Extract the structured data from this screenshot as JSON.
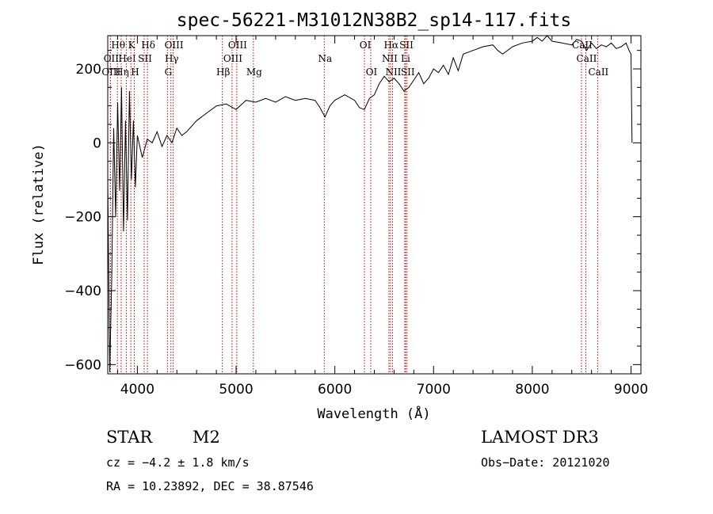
{
  "chart_data": {
    "type": "line",
    "title": "spec-56221-M31012N38B2_sp14-117.fits",
    "xlabel": "Wavelength (Å)",
    "ylabel": "Flux (relative)",
    "xlim": [
      3700,
      9100
    ],
    "ylim": [
      -625,
      290
    ],
    "xticks": [
      4000,
      5000,
      6000,
      7000,
      8000,
      9000
    ],
    "yticks": [
      -600,
      -400,
      -200,
      0,
      200
    ],
    "x_minor_step": 200,
    "y_minor_step": 50,
    "spectrum": {
      "name": "flux",
      "x": [
        3700,
        3720,
        3740,
        3760,
        3780,
        3800,
        3820,
        3840,
        3860,
        3880,
        3900,
        3920,
        3940,
        3960,
        3980,
        4000,
        4050,
        4100,
        4150,
        4200,
        4250,
        4300,
        4350,
        4400,
        4450,
        4500,
        4600,
        4700,
        4800,
        4900,
        5000,
        5100,
        5200,
        5300,
        5400,
        5500,
        5600,
        5700,
        5800,
        5850,
        5900,
        5950,
        6000,
        6100,
        6200,
        6250,
        6300,
        6350,
        6400,
        6450,
        6500,
        6550,
        6600,
        6650,
        6700,
        6750,
        6800,
        6850,
        6900,
        6950,
        7000,
        7050,
        7100,
        7150,
        7200,
        7250,
        7300,
        7400,
        7500,
        7600,
        7650,
        7700,
        7800,
        7900,
        8000,
        8050,
        8100,
        8150,
        8200,
        8300,
        8400,
        8450,
        8500,
        8550,
        8600,
        8650,
        8700,
        8750,
        8800,
        8850,
        8900,
        8950,
        8980,
        9000,
        9010
      ],
      "y": [
        -100,
        -620,
        -370,
        40,
        -200,
        110,
        -130,
        150,
        -240,
        60,
        -210,
        140,
        -100,
        60,
        -120,
        20,
        -40,
        10,
        0,
        30,
        -10,
        20,
        0,
        40,
        20,
        30,
        60,
        80,
        100,
        105,
        90,
        115,
        110,
        120,
        110,
        125,
        115,
        120,
        115,
        95,
        70,
        100,
        115,
        130,
        115,
        95,
        90,
        120,
        130,
        160,
        180,
        165,
        175,
        160,
        140,
        150,
        170,
        190,
        160,
        175,
        200,
        190,
        210,
        185,
        230,
        195,
        240,
        250,
        260,
        265,
        250,
        240,
        260,
        270,
        275,
        285,
        275,
        290,
        275,
        270,
        265,
        280,
        275,
        250,
        270,
        255,
        265,
        260,
        270,
        255,
        260,
        270,
        250,
        240,
        0
      ]
    },
    "lines": [
      {
        "label": "Hθ",
        "x": 3798,
        "row": 1
      },
      {
        "label": "OII",
        "x": 3727,
        "row": 2
      },
      {
        "label": "OIII",
        "x": 3727,
        "row": 3
      },
      {
        "label": "Hη",
        "x": 3836,
        "row": 3
      },
      {
        "label": "K",
        "x": 3934,
        "row": 1
      },
      {
        "label": "HeI",
        "x": 3889,
        "row": 2
      },
      {
        "label": "SII",
        "x": 4069,
        "row": 2
      },
      {
        "label": "H",
        "x": 3969,
        "row": 3
      },
      {
        "label": "Hδ",
        "x": 4102,
        "row": 1
      },
      {
        "label": "OIII",
        "x": 4363,
        "row": 1
      },
      {
        "label": "Hγ",
        "x": 4340,
        "row": 2
      },
      {
        "label": "G",
        "x": 4305,
        "row": 3
      },
      {
        "label": "Hβ",
        "x": 4861,
        "row": 3
      },
      {
        "label": "OIII",
        "x": 5007,
        "row": 1
      },
      {
        "label": "OIII",
        "x": 4959,
        "row": 2
      },
      {
        "label": "Mg",
        "x": 5175,
        "row": 3
      },
      {
        "label": "Na",
        "x": 5893,
        "row": 2
      },
      {
        "label": "OI",
        "x": 6300,
        "row": 1
      },
      {
        "label": "OI",
        "x": 6364,
        "row": 3
      },
      {
        "label": "Hα",
        "x": 6563,
        "row": 1
      },
      {
        "label": "SII",
        "x": 6717,
        "row": 1
      },
      {
        "label": "NII",
        "x": 6548,
        "row": 2
      },
      {
        "label": "Li",
        "x": 6708,
        "row": 2
      },
      {
        "label": "NII",
        "x": 6584,
        "row": 3
      },
      {
        "label": "SII",
        "x": 6731,
        "row": 3
      },
      {
        "label": "CaII",
        "x": 8498,
        "row": 1
      },
      {
        "label": "CaII",
        "x": 8542,
        "row": 2
      },
      {
        "label": "CaII",
        "x": 8662,
        "row": 3
      }
    ]
  },
  "info": {
    "object_type": "STAR",
    "subclass": "M2",
    "survey": "LAMOST DR3",
    "cz": "cz = −4.2 ± 1.8 km/s",
    "obs_date": "Obs−Date: 20121020",
    "coords": "RA =  10.23892, DEC =  38.87546"
  },
  "colors": {
    "spectrum": "#000000",
    "marker_lines": "#cc0000",
    "axes": "#000000"
  }
}
